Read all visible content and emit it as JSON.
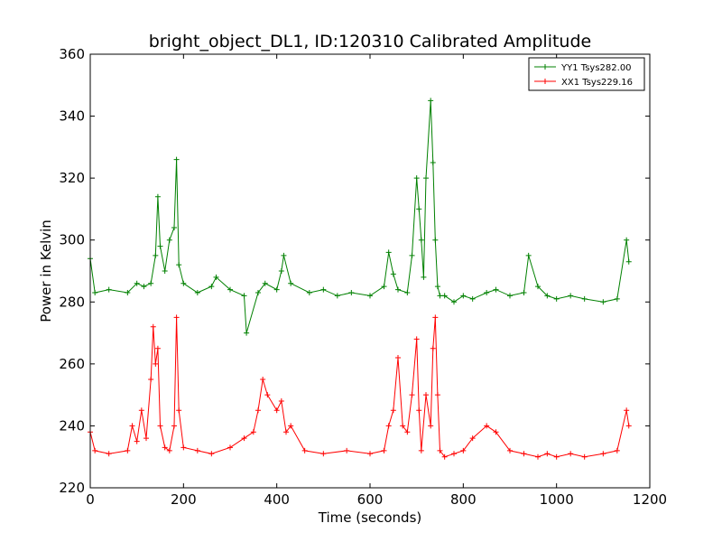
{
  "chart_data": {
    "type": "line",
    "title": "bright_object_DL1, ID:120310 Calibrated Amplitude",
    "xlabel": "Time (seconds)",
    "ylabel": "Power in Kelvin",
    "xlim": [
      0,
      1200
    ],
    "ylim": [
      220,
      360
    ],
    "xticks": [
      0,
      200,
      400,
      600,
      800,
      1000,
      1200
    ],
    "yticks": [
      220,
      240,
      260,
      280,
      300,
      320,
      340,
      360
    ],
    "grid": false,
    "legend_position": "top-right",
    "markers": "plus",
    "series": [
      {
        "name": "YY1 Tsys282.00",
        "color": "#008000",
        "x": [
          0,
          10,
          40,
          80,
          100,
          115,
          130,
          140,
          145,
          150,
          160,
          170,
          180,
          185,
          190,
          200,
          230,
          260,
          270,
          300,
          330,
          335,
          360,
          375,
          400,
          410,
          415,
          430,
          470,
          500,
          530,
          560,
          600,
          630,
          640,
          650,
          660,
          680,
          690,
          700,
          705,
          710,
          715,
          720,
          730,
          735,
          740,
          745,
          750,
          760,
          780,
          800,
          820,
          850,
          870,
          900,
          930,
          940,
          960,
          980,
          1000,
          1030,
          1060,
          1100,
          1130,
          1150,
          1155
        ],
        "y": [
          294,
          283,
          284,
          283,
          286,
          285,
          286,
          295,
          314,
          298,
          290,
          300,
          304,
          326,
          292,
          286,
          283,
          285,
          288,
          284,
          282,
          270,
          283,
          286,
          284,
          290,
          295,
          286,
          283,
          284,
          282,
          283,
          282,
          285,
          296,
          289,
          284,
          283,
          295,
          320,
          310,
          300,
          288,
          320,
          345,
          325,
          300,
          285,
          282,
          282,
          280,
          282,
          281,
          283,
          284,
          282,
          283,
          295,
          285,
          282,
          281,
          282,
          281,
          280,
          281,
          300,
          293
        ]
      },
      {
        "name": "XX1 Tsys229.16",
        "color": "#ff0000",
        "x": [
          0,
          10,
          40,
          80,
          90,
          100,
          110,
          120,
          130,
          135,
          140,
          145,
          150,
          160,
          170,
          180,
          185,
          190,
          200,
          230,
          260,
          300,
          330,
          350,
          360,
          370,
          380,
          400,
          410,
          420,
          430,
          460,
          500,
          550,
          600,
          630,
          640,
          650,
          660,
          670,
          680,
          690,
          700,
          705,
          710,
          720,
          730,
          735,
          740,
          745,
          750,
          760,
          780,
          800,
          820,
          850,
          870,
          900,
          930,
          960,
          980,
          1000,
          1030,
          1060,
          1100,
          1130,
          1150,
          1155
        ],
        "y": [
          238,
          232,
          231,
          232,
          240,
          235,
          245,
          236,
          255,
          272,
          260,
          265,
          240,
          233,
          232,
          240,
          275,
          245,
          233,
          232,
          231,
          233,
          236,
          238,
          245,
          255,
          250,
          245,
          248,
          238,
          240,
          232,
          231,
          232,
          231,
          232,
          240,
          245,
          262,
          240,
          238,
          250,
          268,
          245,
          232,
          250,
          240,
          265,
          275,
          250,
          232,
          230,
          231,
          232,
          236,
          240,
          238,
          232,
          231,
          230,
          231,
          230,
          231,
          230,
          231,
          232,
          245,
          240
        ]
      }
    ]
  }
}
